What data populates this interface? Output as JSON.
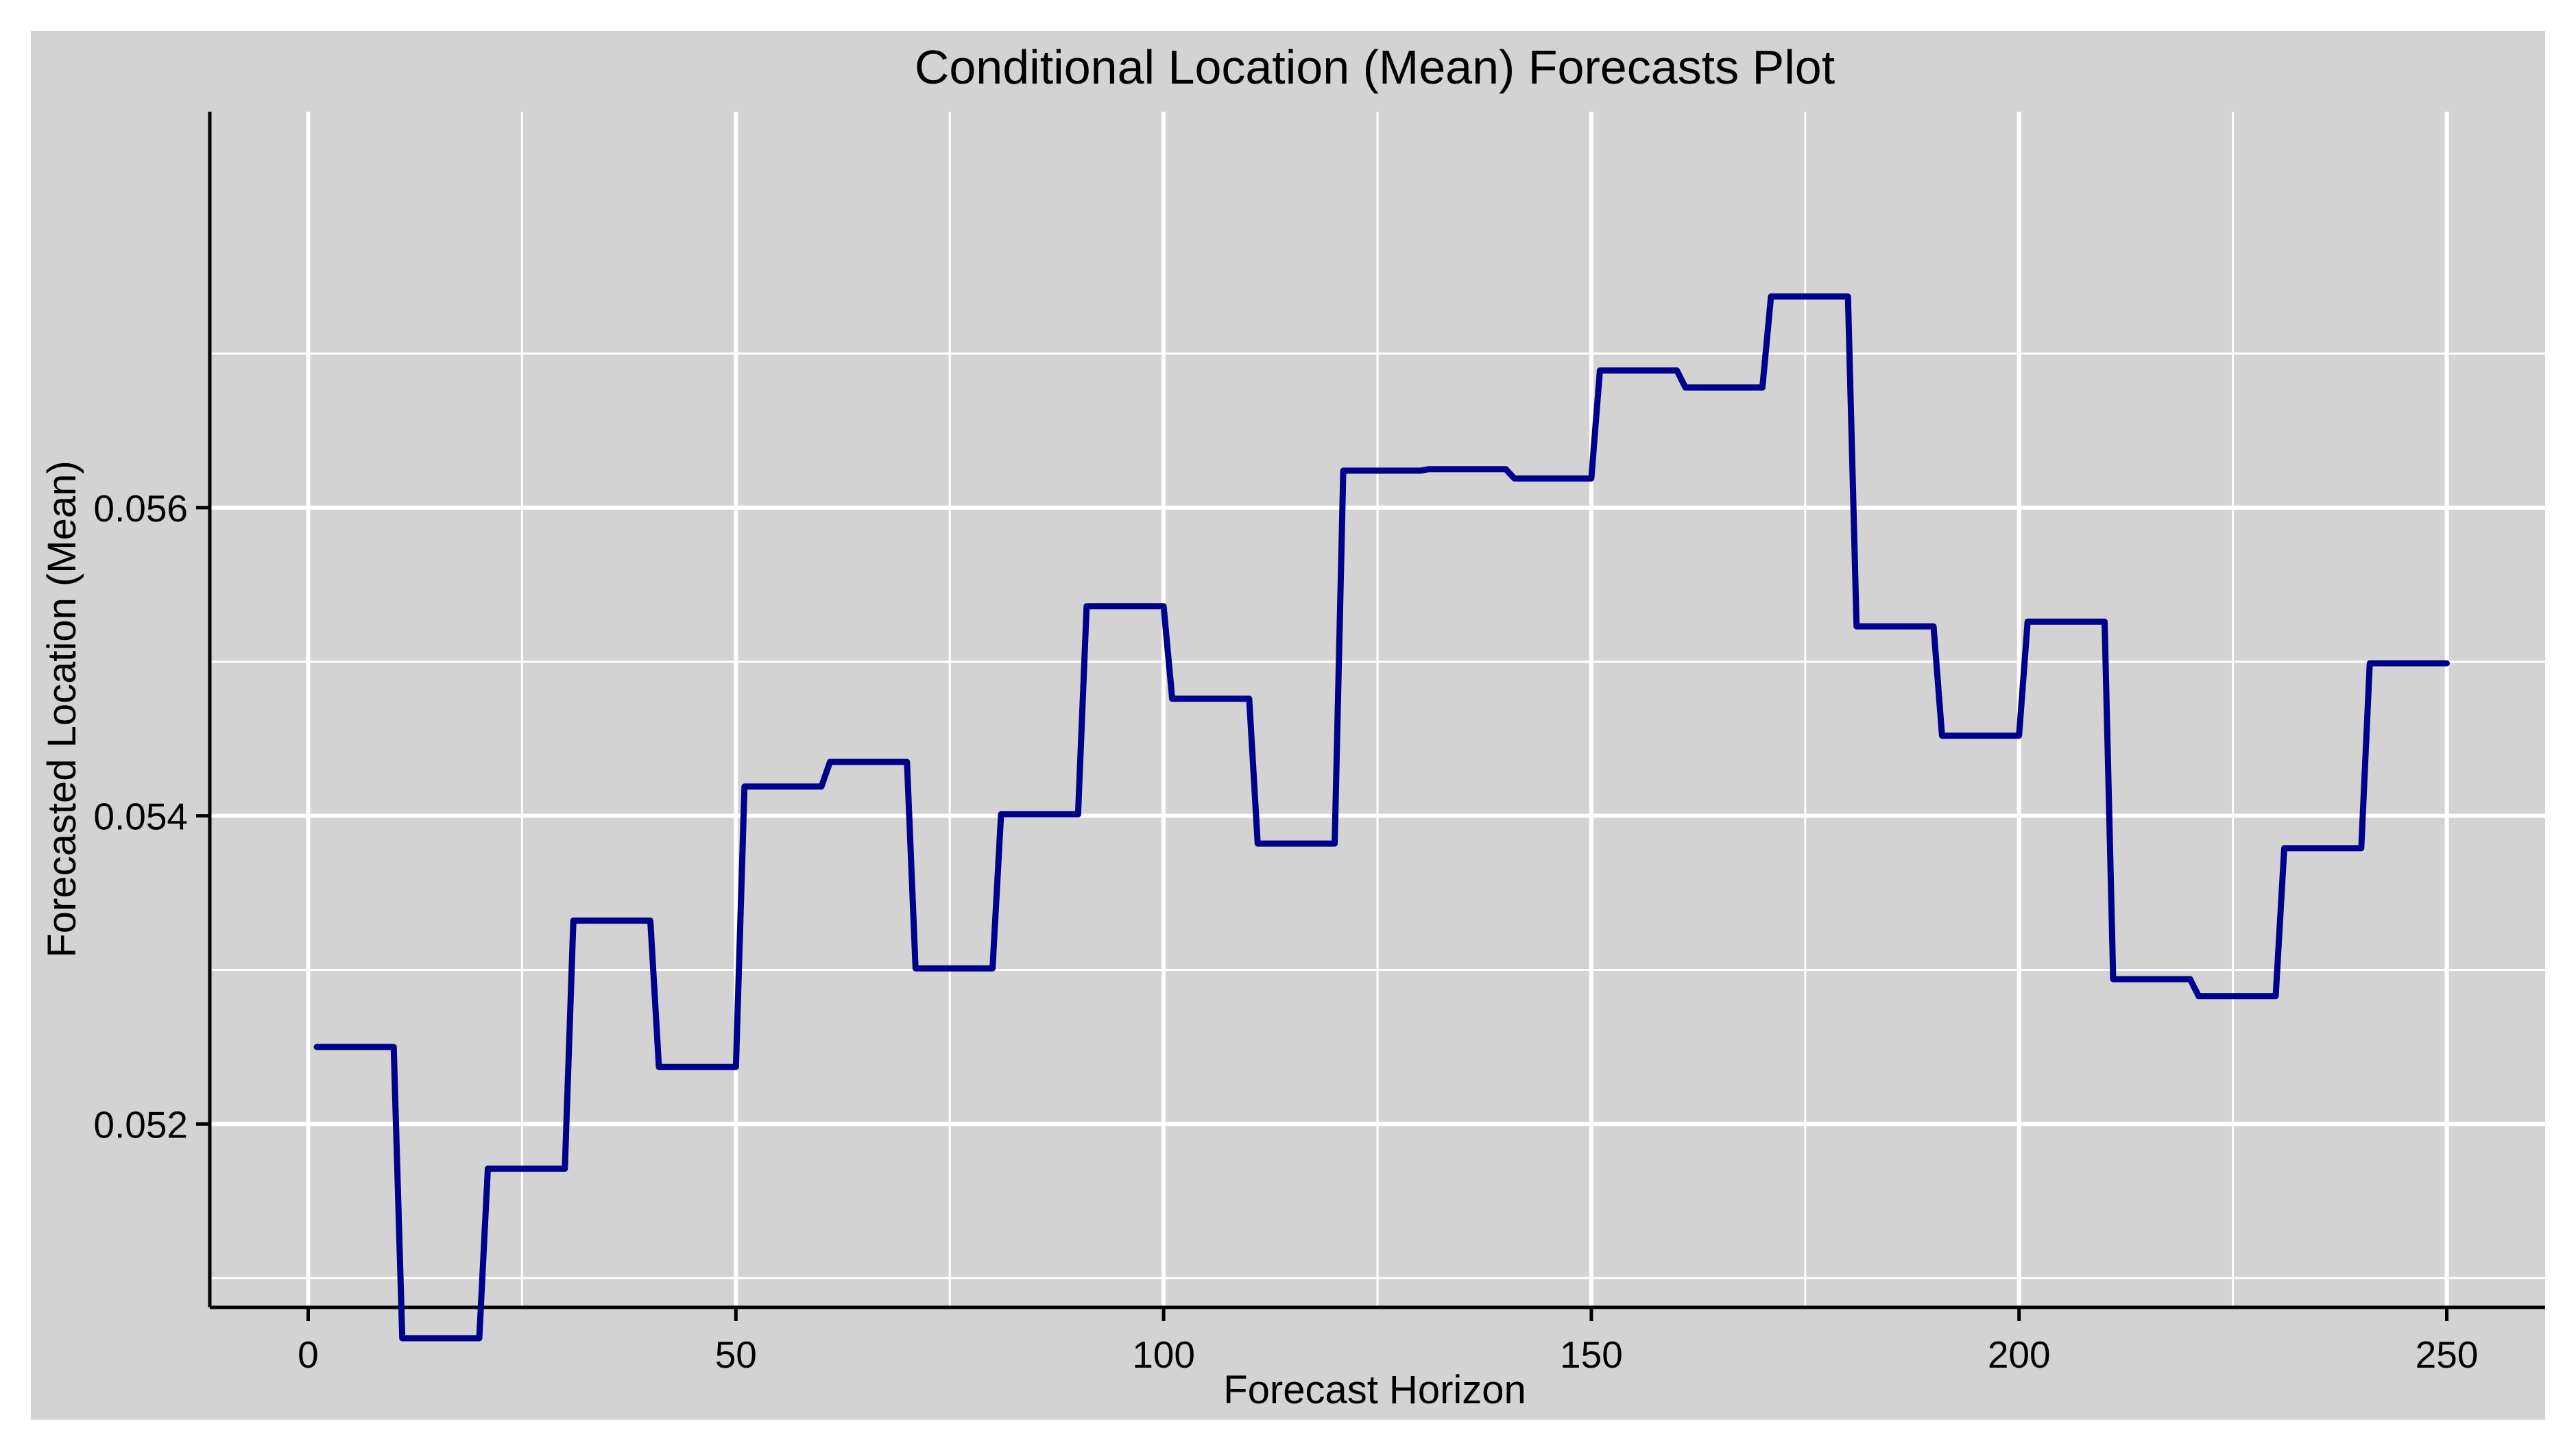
{
  "chart_data": {
    "type": "line",
    "title": "Conditional Location (Mean) Forecasts Plot",
    "xlabel": "Forecast Horizon",
    "ylabel": "Forecasted Location (Mean)",
    "xlim": [
      -11.5,
      261.5
    ],
    "ylim": [
      0.05081,
      0.05857
    ],
    "x_ticks": [
      0,
      50,
      100,
      150,
      200,
      250
    ],
    "x_tick_labels": [
      "0",
      "50",
      "100",
      "150",
      "200",
      "250"
    ],
    "x_minor_ticks": [
      25,
      75,
      125,
      175,
      225
    ],
    "y_ticks": [
      0.052,
      0.054,
      0.056
    ],
    "y_tick_labels": [
      "0.052",
      "0.054",
      "0.056"
    ],
    "y_minor_ticks": [
      0.051,
      0.053,
      0.055,
      0.057
    ],
    "grid": true,
    "legend": "none",
    "colors": {
      "panel": "#d3d3d3",
      "grid": "#ffffff",
      "line": "#00008b",
      "axis": "#000000"
    },
    "series": [
      {
        "x": [
          1,
          10,
          11,
          20,
          21,
          30,
          31,
          40,
          41,
          50,
          51,
          60,
          61,
          70,
          71,
          80,
          81,
          90,
          91,
          100,
          101,
          110,
          111,
          120,
          121,
          130,
          131,
          140,
          141,
          150,
          151,
          160,
          161,
          170,
          171,
          180,
          181,
          190,
          191,
          200,
          201,
          210,
          211,
          220,
          221,
          230,
          231,
          240,
          241,
          250
        ],
        "values": [
          0.0525,
          0.0525,
          0.05061,
          0.05061,
          0.05171,
          0.05171,
          0.05332,
          0.05332,
          0.05237,
          0.05237,
          0.05419,
          0.05419,
          0.05435,
          0.05435,
          0.05301,
          0.05301,
          0.05401,
          0.05401,
          0.05536,
          0.05536,
          0.05476,
          0.05476,
          0.05382,
          0.05382,
          0.05624,
          0.05624,
          0.05625,
          0.05625,
          0.05619,
          0.05619,
          0.05689,
          0.05689,
          0.05678,
          0.05678,
          0.05737,
          0.05737,
          0.05523,
          0.05523,
          0.05452,
          0.05452,
          0.05526,
          0.05526,
          0.05294,
          0.05294,
          0.05283,
          0.05283,
          0.05379,
          0.05379,
          0.05499,
          0.05499
        ]
      }
    ]
  }
}
